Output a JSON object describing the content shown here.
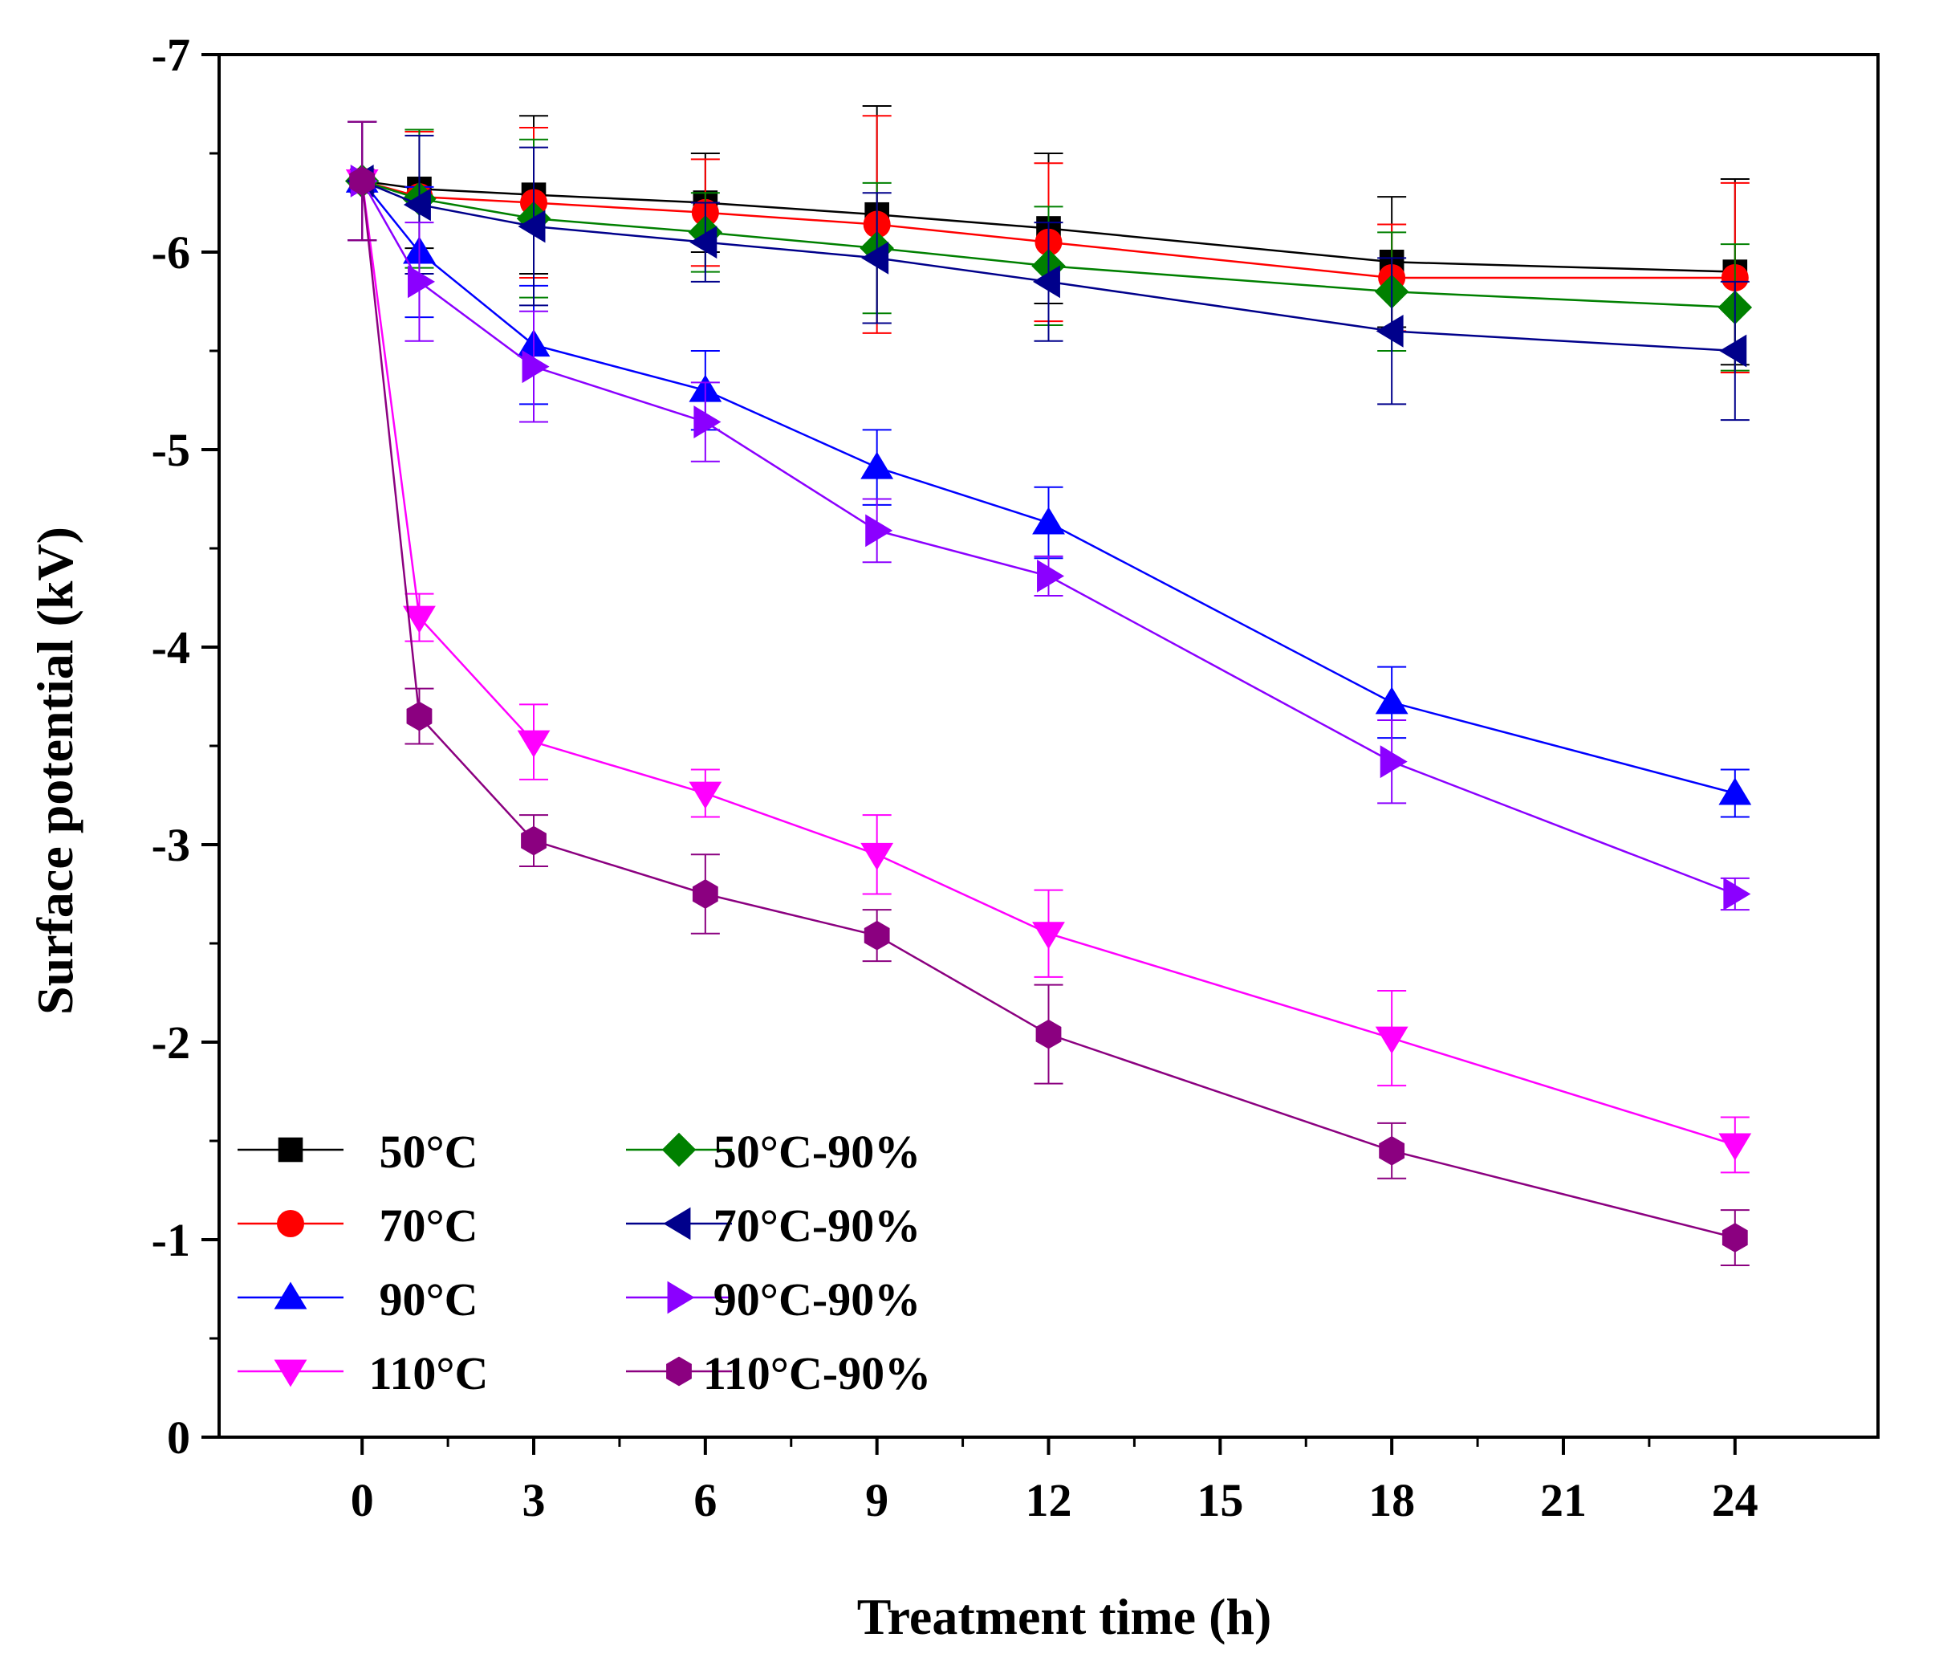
{
  "chart_data": {
    "type": "line",
    "title": "",
    "xlabel": "Treatment time (h)",
    "ylabel": "Surface potential (kV)",
    "xlim": [
      -2.5,
      26.5
    ],
    "ylim": [
      0,
      -7
    ],
    "x_ticks": [
      0,
      3,
      6,
      9,
      12,
      15,
      18,
      21,
      24
    ],
    "x_tick_labels": [
      "0",
      "3",
      "6",
      "9",
      "12",
      "15",
      "18",
      "21",
      "24"
    ],
    "y_ticks": [
      0,
      -1,
      -2,
      -3,
      -4,
      -5,
      -6,
      -7
    ],
    "y_tick_labels": [
      "0",
      "-1",
      "-2",
      "-3",
      "-4",
      "-5",
      "-6",
      "-7"
    ],
    "grid": false,
    "legend_position": "bottom-left",
    "x": [
      0,
      1,
      3,
      6,
      9,
      12,
      18,
      24
    ],
    "series": [
      {
        "name": "50°C",
        "color": "#000000",
        "marker": "square",
        "values": [
          -6.36,
          -6.32,
          -6.29,
          -6.25,
          -6.19,
          -6.12,
          -5.95,
          -5.9
        ],
        "errors": [
          0.3,
          0.3,
          0.4,
          0.25,
          0.55,
          0.38,
          0.33,
          0.47
        ]
      },
      {
        "name": "70°C",
        "color": "#ff0000",
        "marker": "circle",
        "values": [
          -6.36,
          -6.28,
          -6.25,
          -6.2,
          -6.14,
          -6.05,
          -5.87,
          -5.87
        ],
        "errors": [
          0.3,
          0.33,
          0.38,
          0.27,
          0.55,
          0.4,
          0.27,
          0.48
        ]
      },
      {
        "name": "90°C",
        "color": "#0000ff",
        "marker": "triangle-up",
        "values": [
          -6.36,
          -6.0,
          -5.53,
          -5.3,
          -4.91,
          -4.63,
          -3.72,
          -3.26
        ],
        "errors": [
          0.3,
          0.33,
          0.3,
          0.2,
          0.19,
          0.18,
          0.18,
          0.12
        ]
      },
      {
        "name": "110°C",
        "color": "#ff00ff",
        "marker": "triangle-down",
        "values": [
          -6.36,
          -4.15,
          -3.52,
          -3.26,
          -2.95,
          -2.55,
          -2.02,
          -1.48
        ],
        "errors": [
          0.3,
          0.12,
          0.19,
          0.12,
          0.2,
          0.22,
          0.24,
          0.14
        ]
      },
      {
        "name": "50°C-90%",
        "color": "#008000",
        "marker": "diamond",
        "values": [
          -6.36,
          -6.27,
          -6.17,
          -6.1,
          -6.02,
          -5.93,
          -5.8,
          -5.72
        ],
        "errors": [
          0.3,
          0.35,
          0.4,
          0.2,
          0.33,
          0.3,
          0.3,
          0.32
        ]
      },
      {
        "name": "70°C-90%",
        "color": "#00008b",
        "marker": "triangle-left",
        "values": [
          -6.36,
          -6.24,
          -6.13,
          -6.05,
          -5.97,
          -5.85,
          -5.6,
          -5.5
        ],
        "errors": [
          0.3,
          0.35,
          0.4,
          0.2,
          0.33,
          0.3,
          0.37,
          0.35
        ]
      },
      {
        "name": "90°C-90%",
        "color": "#8b00ff",
        "marker": "triangle-right",
        "values": [
          -6.36,
          -5.85,
          -5.42,
          -5.14,
          -4.59,
          -4.36,
          -3.42,
          -2.75
        ],
        "errors": [
          0.3,
          0.3,
          0.28,
          0.2,
          0.16,
          0.1,
          0.21,
          0.08
        ]
      },
      {
        "name": "110°C-90%",
        "color": "#8b0080",
        "marker": "hexagon",
        "values": [
          -6.36,
          -3.65,
          -3.02,
          -2.75,
          -2.54,
          -2.04,
          -1.45,
          -1.01
        ],
        "errors": [
          0.3,
          0.14,
          0.13,
          0.2,
          0.13,
          0.25,
          0.14,
          0.14
        ]
      }
    ]
  }
}
